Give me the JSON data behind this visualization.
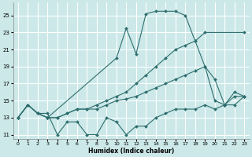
{
  "xlabel": "Humidex (Indice chaleur)",
  "bg_color": "#cce8e8",
  "grid_color": "#ffffff",
  "line_color": "#2e6e6e",
  "series": {
    "top": {
      "x": [
        0,
        1,
        2,
        3,
        10,
        11,
        12,
        13,
        14,
        15,
        16,
        17,
        18,
        19,
        23
      ],
      "y": [
        13,
        14.5,
        13.5,
        13,
        20,
        23.5,
        20.5,
        25.2,
        25.5,
        25.5,
        25.5,
        25,
        22,
        23,
        23
      ]
    },
    "mid_upper": {
      "x": [
        0,
        1,
        2,
        3,
        4,
        5,
        6,
        7,
        8,
        9,
        10,
        11,
        12,
        13,
        14,
        15,
        16,
        17,
        18,
        19,
        20,
        21,
        22,
        23
      ],
      "y": [
        13,
        14.5,
        13.5,
        13,
        13,
        13.5,
        14,
        14,
        14.5,
        15,
        15.5,
        16,
        17,
        18,
        19,
        20,
        21,
        21.5,
        22,
        19,
        17.5,
        14.5,
        16,
        15.5
      ]
    },
    "mid_lower": {
      "x": [
        0,
        1,
        2,
        3,
        4,
        5,
        6,
        7,
        8,
        9,
        10,
        11,
        12,
        13,
        14,
        15,
        16,
        17,
        18,
        19,
        20,
        21,
        22,
        23
      ],
      "y": [
        13,
        14.5,
        13.5,
        13,
        13,
        13.5,
        14,
        14,
        14,
        14.5,
        15,
        15.2,
        15.5,
        16,
        16.5,
        17,
        17.5,
        18,
        18.5,
        19,
        15,
        14.5,
        15.5,
        15.5
      ]
    },
    "bottom": {
      "x": [
        0,
        1,
        2,
        3,
        4,
        5,
        6,
        7,
        8,
        9,
        10,
        11,
        12,
        13,
        14,
        15,
        16,
        17,
        18,
        19,
        20,
        21,
        22,
        23
      ],
      "y": [
        13,
        14.5,
        13.5,
        13.5,
        11,
        12.5,
        12.5,
        11,
        11,
        13,
        12.5,
        11,
        12,
        12,
        13,
        13.5,
        14,
        14,
        14,
        14.5,
        14,
        14.5,
        14.5,
        15.5
      ]
    }
  },
  "xlim": [
    -0.5,
    23.5
  ],
  "ylim": [
    10.5,
    26.5
  ],
  "yticks": [
    11,
    13,
    15,
    17,
    19,
    21,
    23,
    25
  ],
  "xticks": [
    0,
    1,
    2,
    3,
    4,
    5,
    6,
    7,
    8,
    9,
    10,
    11,
    12,
    13,
    14,
    15,
    16,
    17,
    18,
    19,
    20,
    21,
    22,
    23
  ]
}
